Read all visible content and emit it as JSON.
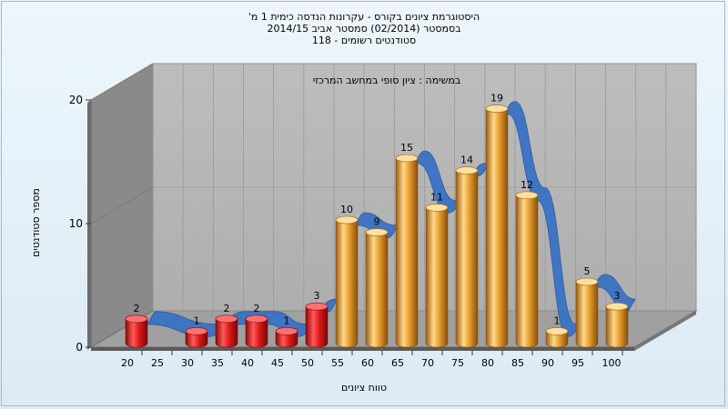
{
  "chart_data": {
    "type": "bar",
    "title_lines": [
      "היסטוגרמת ציונים בקורס - עקרונות הנדסה כימית 1 מ'",
      "בסמסטר  (02/2014)  סמסטר אביב 2014/15",
      "סטודנטים רשומים - 118"
    ],
    "subtitle": "במשימה : ציון סופי במחשב המרכזי",
    "xlabel": "טווח ציונים",
    "ylabel": "מספר סטודנטים",
    "categories": [
      "20",
      "25",
      "30",
      "35",
      "40",
      "45",
      "50",
      "55",
      "60",
      "65",
      "70",
      "75",
      "80",
      "85",
      "90",
      "95",
      "100"
    ],
    "values": [
      2,
      null,
      1,
      2,
      2,
      1,
      3,
      10,
      9,
      15,
      11,
      14,
      19,
      12,
      1,
      5,
      3
    ],
    "bar_colors": [
      "red",
      "red",
      "red",
      "red",
      "red",
      "red",
      "red",
      "orange",
      "orange",
      "orange",
      "orange",
      "orange",
      "orange",
      "orange",
      "orange",
      "orange",
      "orange"
    ],
    "ylim": [
      0,
      20
    ],
    "yticks": [
      0,
      10,
      20
    ],
    "trend_line": true,
    "colors": {
      "red": "#e01b1b",
      "orange": "#e8a030",
      "trend": "#3a72c4",
      "back_wall": "#b4b4b4",
      "side_wall": "#8a8a8a",
      "floor": "#a0a0a0"
    }
  }
}
